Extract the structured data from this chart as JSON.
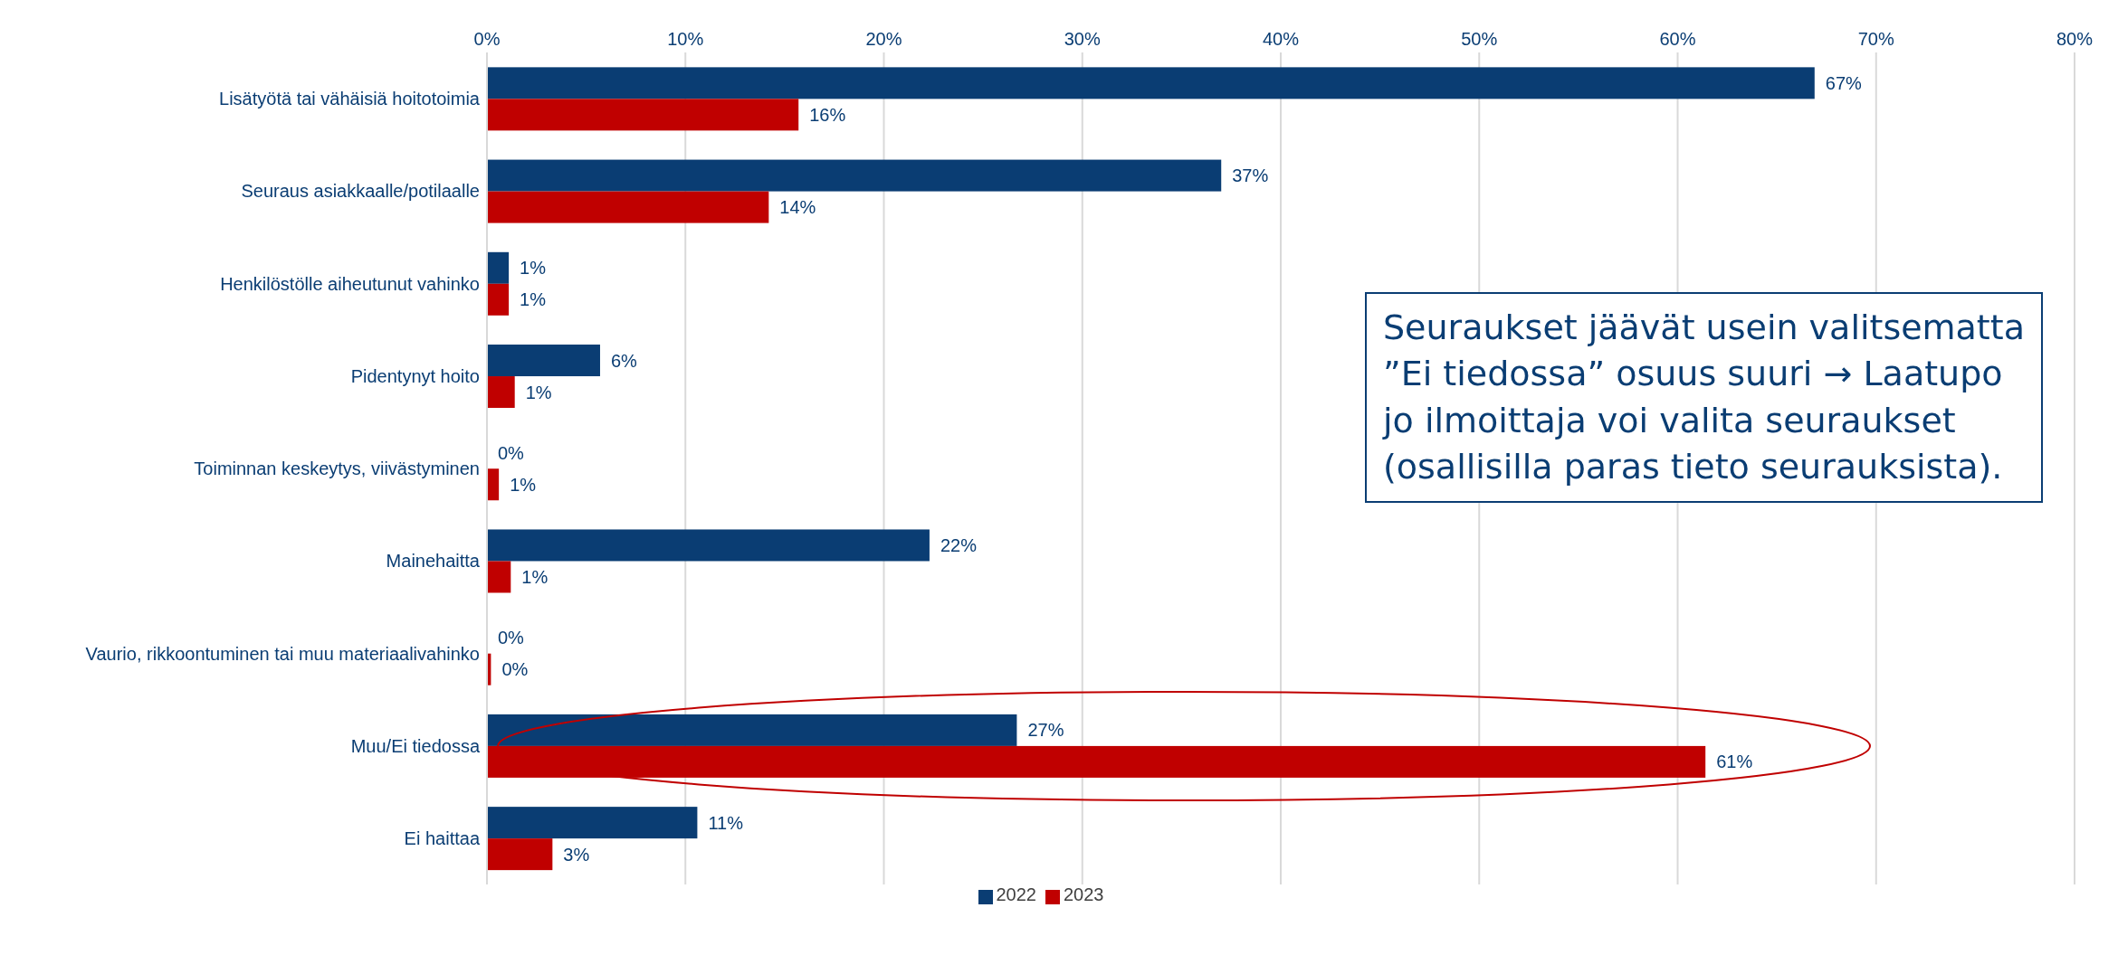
{
  "chart_data": {
    "type": "bar",
    "orientation": "horizontal",
    "categories": [
      "Lisätyötä tai vähäisiä hoitotoimia",
      "Seuraus asiakkaalle/potilaalle",
      "Henkilöstölle aiheutunut vahinko",
      "Pidentynyt hoito",
      "Toiminnan keskeytys, viivästyminen",
      "Mainehaitta",
      "Vaurio, rikkoontuminen tai muu materiaalivahinko",
      "Muu/Ei tiedossa",
      "Ei haittaa"
    ],
    "series": [
      {
        "name": "2022",
        "color": "#0a3d73",
        "values": [
          66.9,
          37.0,
          1.1,
          5.7,
          0,
          22.3,
          0,
          26.7,
          10.6
        ],
        "value_labels": [
          "67%",
          "37%",
          "1%",
          "6%",
          "0%",
          "22%",
          "0%",
          "27%",
          "11%"
        ]
      },
      {
        "name": "2023",
        "color": "#c00000",
        "values": [
          15.7,
          14.2,
          1.1,
          1.4,
          0.6,
          1.2,
          0.2,
          61.4,
          3.3
        ],
        "value_labels": [
          "16%",
          "14%",
          "1%",
          "1%",
          "1%",
          "1%",
          "0%",
          "61%",
          "3%"
        ]
      }
    ],
    "xlim": [
      0,
      80
    ],
    "xticks": [
      {
        "value": 0,
        "label": "0%"
      },
      {
        "value": 10,
        "label": "10%"
      },
      {
        "value": 20,
        "label": "20%"
      },
      {
        "value": 30,
        "label": "30%"
      },
      {
        "value": 40,
        "label": "40%"
      },
      {
        "value": 50,
        "label": "50%"
      },
      {
        "value": 60,
        "label": "60%"
      },
      {
        "value": 70,
        "label": "70%"
      },
      {
        "value": 80,
        "label": "80%"
      }
    ],
    "grid": "x",
    "legend": "bottom",
    "annotations": [
      "Seuraukset jäävät usein valitsematta\n”Ei tiedossa” osuus suuri → Laatupo\njo ilmoittaja voi valita seuraukset\n(osallisilla paras tieto seurauksista)."
    ]
  }
}
